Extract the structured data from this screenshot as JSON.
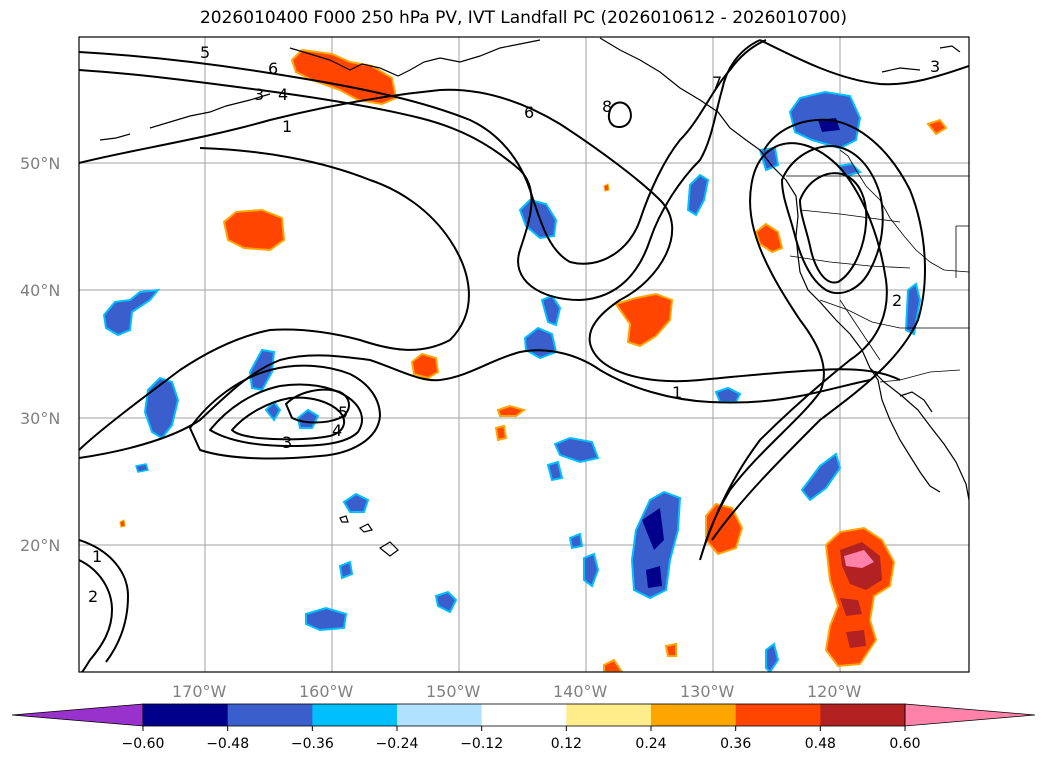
{
  "title": "2026010400 F000 250 hPa PV, IVT Landfall PC (2026010612 - 2026010700)",
  "lat_labels": [
    "50°N",
    "40°N",
    "30°N",
    "20°N"
  ],
  "lon_labels": [
    "170°W",
    "160°W",
    "150°W",
    "140°W",
    "130°W",
    "120°W"
  ],
  "contour_labels": [
    "5",
    "6",
    "3",
    "4",
    "1",
    "6",
    "8",
    "7",
    "3",
    "5",
    "4",
    "3",
    "1",
    "2",
    "1",
    "2"
  ],
  "colorbar": {
    "tick_labels": [
      "−0.60",
      "−0.48",
      "−0.36",
      "−0.24",
      "−0.12",
      "0.12",
      "0.24",
      "0.36",
      "0.48",
      "0.60"
    ],
    "colors": [
      "#9932cc",
      "#00008b",
      "#3a5fcd",
      "#00bfff",
      "#b0e2ff",
      "#ffffff",
      "#ffec8b",
      "#ffa500",
      "#ff4500",
      "#b22222",
      "#ff82ab",
      "#ff82ab"
    ]
  }
}
